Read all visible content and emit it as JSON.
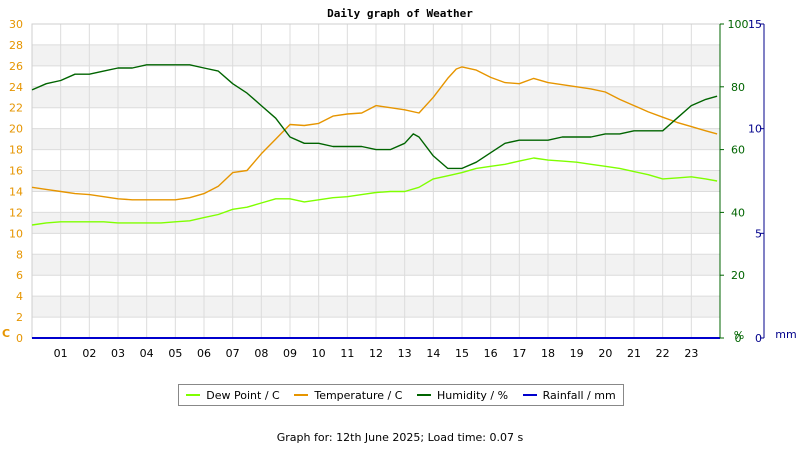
{
  "chart_data": {
    "type": "line",
    "title": "Daily graph of Weather",
    "x_ticks": [
      "01",
      "02",
      "03",
      "04",
      "05",
      "06",
      "07",
      "08",
      "09",
      "10",
      "11",
      "12",
      "13",
      "14",
      "15",
      "16",
      "17",
      "18",
      "19",
      "20",
      "21",
      "22",
      "23"
    ],
    "x_range": [
      0,
      24
    ],
    "left_axis": {
      "unit": "C",
      "ylim": [
        0,
        30
      ],
      "ticks": [
        0,
        2,
        4,
        6,
        8,
        10,
        12,
        14,
        16,
        18,
        20,
        22,
        24,
        26,
        28,
        30
      ],
      "color": "#e69500"
    },
    "right_axis_1": {
      "unit": "%",
      "ylim": [
        0,
        100
      ],
      "ticks": [
        0,
        20,
        40,
        60,
        80,
        100
      ],
      "color": "#006400"
    },
    "right_axis_2": {
      "unit": "mm",
      "ylim": [
        0,
        15
      ],
      "ticks": [
        0,
        5,
        10,
        15
      ],
      "color": "#00008b"
    },
    "grid": true,
    "series": [
      {
        "name": "Dew Point / C",
        "axis": "left",
        "color": "#7fff00",
        "x": [
          0.0,
          0.5,
          1.0,
          1.5,
          2.0,
          2.5,
          3.0,
          3.5,
          4.0,
          4.5,
          5.0,
          5.5,
          6.0,
          6.5,
          7.0,
          7.5,
          8.0,
          8.5,
          9.0,
          9.5,
          10.0,
          10.5,
          11.0,
          11.5,
          12.0,
          12.5,
          13.0,
          13.5,
          14.0,
          14.5,
          15.0,
          15.5,
          16.0,
          16.5,
          17.0,
          17.5,
          18.0,
          18.5,
          19.0,
          19.5,
          20.0,
          20.5,
          21.0,
          21.5,
          22.0,
          22.5,
          23.0,
          23.5,
          23.9
        ],
        "y": [
          10.8,
          11.0,
          11.1,
          11.1,
          11.1,
          11.1,
          11.0,
          11.0,
          11.0,
          11.0,
          11.1,
          11.2,
          11.5,
          11.8,
          12.3,
          12.5,
          12.9,
          13.3,
          13.3,
          13.0,
          13.2,
          13.4,
          13.5,
          13.7,
          13.9,
          14.0,
          14.0,
          14.4,
          15.2,
          15.5,
          15.8,
          16.2,
          16.4,
          16.6,
          16.9,
          17.2,
          17.0,
          16.9,
          16.8,
          16.6,
          16.4,
          16.2,
          15.9,
          15.6,
          15.2,
          15.3,
          15.4,
          15.2,
          15.0
        ]
      },
      {
        "name": "Temperature / C",
        "axis": "left",
        "color": "#e69500",
        "x": [
          0.0,
          0.5,
          1.0,
          1.5,
          2.0,
          2.5,
          3.0,
          3.5,
          4.0,
          4.5,
          5.0,
          5.5,
          6.0,
          6.5,
          7.0,
          7.5,
          8.0,
          8.5,
          9.0,
          9.5,
          10.0,
          10.5,
          11.0,
          11.5,
          12.0,
          12.5,
          13.0,
          13.5,
          14.0,
          14.5,
          14.8,
          15.0,
          15.5,
          16.0,
          16.5,
          17.0,
          17.5,
          18.0,
          18.5,
          19.0,
          19.5,
          20.0,
          20.5,
          21.0,
          21.5,
          22.0,
          22.5,
          23.0,
          23.5,
          23.9
        ],
        "y": [
          14.4,
          14.2,
          14.0,
          13.8,
          13.7,
          13.5,
          13.3,
          13.2,
          13.2,
          13.2,
          13.2,
          13.4,
          13.8,
          14.5,
          15.8,
          16.0,
          17.6,
          19.0,
          20.4,
          20.3,
          20.5,
          21.2,
          21.4,
          21.5,
          22.2,
          22.0,
          21.8,
          21.5,
          23.0,
          24.8,
          25.7,
          25.9,
          25.6,
          24.9,
          24.4,
          24.3,
          24.8,
          24.4,
          24.2,
          24.0,
          23.8,
          23.5,
          22.8,
          22.2,
          21.6,
          21.1,
          20.6,
          20.2,
          19.8,
          19.5
        ]
      },
      {
        "name": "Humidity / %",
        "axis": "right_1",
        "color": "#006400",
        "x": [
          0.0,
          0.5,
          1.0,
          1.5,
          2.0,
          2.5,
          3.0,
          3.5,
          4.0,
          4.5,
          5.0,
          5.5,
          6.0,
          6.5,
          7.0,
          7.5,
          8.0,
          8.5,
          9.0,
          9.5,
          10.0,
          10.5,
          11.0,
          11.5,
          12.0,
          12.5,
          13.0,
          13.3,
          13.5,
          14.0,
          14.5,
          15.0,
          15.5,
          16.0,
          16.5,
          17.0,
          17.5,
          18.0,
          18.5,
          19.0,
          19.5,
          20.0,
          20.5,
          21.0,
          21.5,
          22.0,
          22.5,
          23.0,
          23.5,
          23.9
        ],
        "y": [
          79,
          81,
          82,
          84,
          84,
          85,
          86,
          86,
          87,
          87,
          87,
          87,
          86,
          85,
          81,
          78,
          74,
          70,
          64,
          62,
          62,
          61,
          61,
          61,
          60,
          60,
          62,
          65,
          64,
          58,
          54,
          54,
          56,
          59,
          62,
          63,
          63,
          63,
          64,
          64,
          64,
          65,
          65,
          66,
          66,
          66,
          70,
          74,
          76,
          77
        ]
      },
      {
        "name": "Rainfall / mm",
        "axis": "right_2",
        "color": "#0000cd",
        "x": [
          0,
          24
        ],
        "y": [
          0,
          0
        ]
      }
    ]
  },
  "footer": {
    "text": "Graph for: 12th June 2025; Load time: 0.07 s"
  }
}
